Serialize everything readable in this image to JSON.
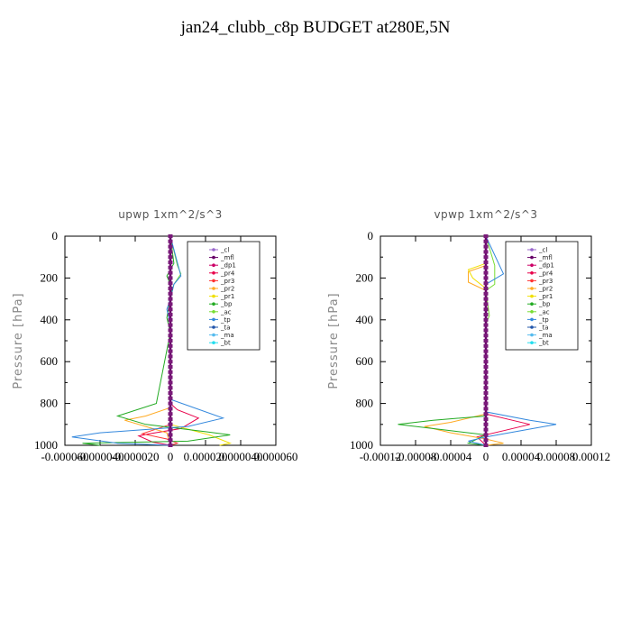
{
  "title": "jan24_clubb_c8p  BUDGET at280E,5N",
  "chart_data": [
    {
      "type": "line",
      "title": "upwp   1xm^2/s^3",
      "ylabel": "Pressure [hPa]",
      "xlim": [
        -6e-05,
        6e-05
      ],
      "ylim": [
        1000,
        0
      ],
      "xticks": [
        "-0.000060",
        "-0.000040",
        "-0.000020",
        "0",
        "0.000020",
        "0.000040",
        "0.000060"
      ],
      "yticks": [
        0,
        200,
        400,
        600,
        800,
        1000
      ],
      "legend": "top-right",
      "series": [
        {
          "name": "_cl",
          "color": "#9966cc",
          "points": [
            [
              0,
              0
            ],
            [
              0,
              1000
            ]
          ]
        },
        {
          "name": "_mfl",
          "color": "#660066",
          "points": [
            [
              0,
              0
            ],
            [
              0,
              1000
            ]
          ]
        },
        {
          "name": "_dp1",
          "color": "#cc0066",
          "points": [
            [
              0,
              0
            ],
            [
              0,
              1000
            ]
          ]
        },
        {
          "name": "_pr4",
          "color": "#e8004a",
          "points": [
            [
              0,
              0
            ],
            [
              0,
              800
            ],
            [
              4e-06,
              830
            ],
            [
              1.6e-05,
              870
            ],
            [
              6e-06,
              920
            ],
            [
              -1.2e-05,
              945
            ],
            [
              -1.8e-05,
              955
            ],
            [
              -1e-05,
              985
            ],
            [
              0,
              1000
            ]
          ]
        },
        {
          "name": "_pr3",
          "color": "#ff3333",
          "points": [
            [
              0,
              0
            ],
            [
              0,
              900
            ],
            [
              -1.6e-05,
              945
            ],
            [
              -2e-06,
              970
            ],
            [
              4e-06,
              990
            ],
            [
              0,
              1000
            ]
          ]
        },
        {
          "name": "_pr2",
          "color": "#ffaa22",
          "points": [
            [
              0,
              0
            ],
            [
              0,
              820
            ],
            [
              -1.4e-05,
              860
            ],
            [
              -2.6e-05,
              880
            ],
            [
              -1.4e-05,
              910
            ],
            [
              -2e-06,
              940
            ],
            [
              0,
              1000
            ]
          ]
        },
        {
          "name": "_pr1",
          "color": "#f0e000",
          "points": [
            [
              0,
              0
            ],
            [
              0,
              900
            ],
            [
              2.2e-05,
              950
            ],
            [
              3.4e-05,
              990
            ],
            [
              2.8e-05,
              1000
            ]
          ]
        },
        {
          "name": "_bp",
          "color": "#22aa22",
          "points": [
            [
              0,
              0
            ],
            [
              2e-06,
              130
            ],
            [
              -2e-06,
              190
            ],
            [
              1e-06,
              250
            ],
            [
              -2e-06,
              390
            ],
            [
              0,
              460
            ],
            [
              -8e-06,
              800
            ],
            [
              -3e-05,
              860
            ],
            [
              -1.4e-05,
              900
            ],
            [
              2e-05,
              935
            ],
            [
              3.4e-05,
              950
            ],
            [
              1e-05,
              980
            ],
            [
              -5e-05,
              990
            ],
            [
              -4e-05,
              1000
            ]
          ]
        },
        {
          "name": "_ac",
          "color": "#77dd33",
          "points": [
            [
              0,
              0
            ],
            [
              4e-06,
              140
            ],
            [
              6e-06,
              180
            ],
            [
              2e-06,
              230
            ],
            [
              0,
              300
            ],
            [
              0,
              1000
            ]
          ]
        },
        {
          "name": "_tp",
          "color": "#3388dd",
          "points": [
            [
              0,
              0
            ],
            [
              6e-06,
              190
            ],
            [
              2e-06,
              230
            ],
            [
              0,
              300
            ],
            [
              -2e-06,
              350
            ],
            [
              0,
              420
            ],
            [
              0,
              780
            ],
            [
              3e-05,
              870
            ],
            [
              1e-05,
              910
            ],
            [
              -4e-05,
              940
            ],
            [
              -5.6e-05,
              960
            ],
            [
              -3e-05,
              990
            ],
            [
              0,
              1000
            ]
          ]
        },
        {
          "name": "_ta",
          "color": "#2255aa",
          "points": [
            [
              0,
              0
            ],
            [
              0,
              1000
            ]
          ]
        },
        {
          "name": "_ma",
          "color": "#55bbee",
          "points": [
            [
              0,
              0
            ],
            [
              0,
              1000
            ]
          ]
        },
        {
          "name": "_bt",
          "color": "#22ddee",
          "points": [
            [
              0,
              0
            ],
            [
              0,
              1000
            ]
          ]
        }
      ]
    },
    {
      "type": "line",
      "title": "vpwp   1xm^2/s^3",
      "ylabel": "Pressure [hPa]",
      "xlim": [
        -0.00012,
        0.00012
      ],
      "ylim": [
        1000,
        0
      ],
      "xticks": [
        "-0.00012",
        "-0.00008",
        "-0.00004",
        "0",
        "0.00004",
        "0.00008",
        "0.00012"
      ],
      "yticks": [
        0,
        200,
        400,
        600,
        800,
        1000
      ],
      "legend": "top-right",
      "series": [
        {
          "name": "_cl",
          "color": "#9966cc",
          "points": [
            [
              0,
              0
            ],
            [
              0,
              1000
            ]
          ]
        },
        {
          "name": "_mfl",
          "color": "#660066",
          "points": [
            [
              0,
              0
            ],
            [
              0,
              1000
            ]
          ]
        },
        {
          "name": "_dp1",
          "color": "#cc0066",
          "points": [
            [
              0,
              0
            ],
            [
              0,
              1000
            ]
          ]
        },
        {
          "name": "_pr4",
          "color": "#e8004a",
          "points": [
            [
              0,
              0
            ],
            [
              0,
              850
            ],
            [
              3e-05,
              880
            ],
            [
              5e-05,
              900
            ],
            [
              2e-05,
              930
            ],
            [
              -1e-05,
              960
            ],
            [
              0,
              1000
            ]
          ]
        },
        {
          "name": "_pr3",
          "color": "#ff3333",
          "points": [
            [
              0,
              0
            ],
            [
              0,
              1000
            ]
          ]
        },
        {
          "name": "_pr2",
          "color": "#ffaa22",
          "points": [
            [
              0,
              0
            ],
            [
              0,
              140
            ],
            [
              -2e-05,
              170
            ],
            [
              -2e-05,
              220
            ],
            [
              0,
              260
            ],
            [
              0,
              850
            ],
            [
              -4e-05,
              890
            ],
            [
              -7e-05,
              910
            ],
            [
              -4e-05,
              940
            ],
            [
              0,
              970
            ],
            [
              2e-05,
              990
            ],
            [
              0,
              1000
            ]
          ]
        },
        {
          "name": "_pr1",
          "color": "#f0e000",
          "points": [
            [
              0,
              0
            ],
            [
              0,
              130
            ],
            [
              -2e-05,
              160
            ],
            [
              -1.5e-05,
              200
            ],
            [
              0,
              250
            ],
            [
              0,
              1000
            ]
          ]
        },
        {
          "name": "_bp",
          "color": "#22aa22",
          "points": [
            [
              0,
              0
            ],
            [
              0,
              860
            ],
            [
              -6e-05,
              880
            ],
            [
              -0.0001,
              900
            ],
            [
              -4e-05,
              930
            ],
            [
              0,
              950
            ],
            [
              -2e-05,
              990
            ],
            [
              0,
              1000
            ]
          ]
        },
        {
          "name": "_ac",
          "color": "#77dd33",
          "points": [
            [
              0,
              0
            ],
            [
              1e-05,
              140
            ],
            [
              1e-05,
              230
            ],
            [
              0,
              260
            ],
            [
              4e-06,
              380
            ],
            [
              0,
              420
            ],
            [
              0,
              1000
            ]
          ]
        },
        {
          "name": "_tp",
          "color": "#3388dd",
          "points": [
            [
              0,
              0
            ],
            [
              2e-05,
              180
            ],
            [
              0,
              230
            ],
            [
              0,
              840
            ],
            [
              5e-05,
              880
            ],
            [
              8e-05,
              900
            ],
            [
              4e-05,
              930
            ],
            [
              0,
              960
            ],
            [
              -2e-05,
              980
            ],
            [
              0,
              1000
            ]
          ]
        },
        {
          "name": "_ta",
          "color": "#2255aa",
          "points": [
            [
              0,
              0
            ],
            [
              0,
              1000
            ]
          ]
        },
        {
          "name": "_ma",
          "color": "#55bbee",
          "points": [
            [
              0,
              0
            ],
            [
              0,
              1000
            ]
          ]
        },
        {
          "name": "_bt",
          "color": "#22ddee",
          "points": [
            [
              0,
              0
            ],
            [
              0,
              1000
            ]
          ]
        }
      ]
    }
  ]
}
